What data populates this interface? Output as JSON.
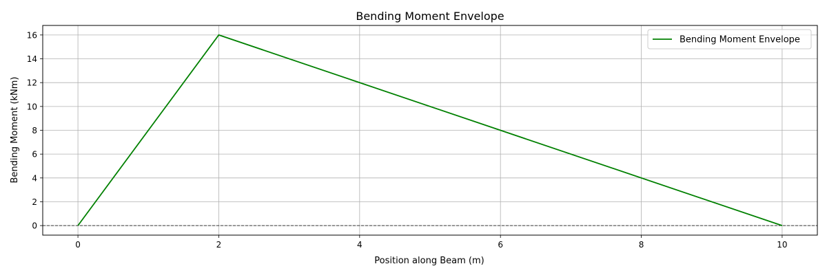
{
  "chart_data": {
    "type": "line",
    "title": "Bending Moment Envelope",
    "xlabel": "Position along Beam (m)",
    "ylabel": "Bending Moment (kNm)",
    "xlim": [
      -0.5,
      10.5
    ],
    "ylim": [
      -0.8,
      16.8
    ],
    "xticks": [
      0,
      2,
      4,
      6,
      8,
      10
    ],
    "yticks": [
      0,
      2,
      4,
      6,
      8,
      10,
      12,
      14,
      16
    ],
    "grid": true,
    "legend_position": "top-right",
    "reference_line": {
      "y": 0,
      "style": "dashed",
      "color": "#000000"
    },
    "series": [
      {
        "name": "Bending Moment Envelope",
        "color": "#008000",
        "x": [
          0,
          2,
          10
        ],
        "y": [
          0,
          16,
          0
        ]
      }
    ]
  }
}
